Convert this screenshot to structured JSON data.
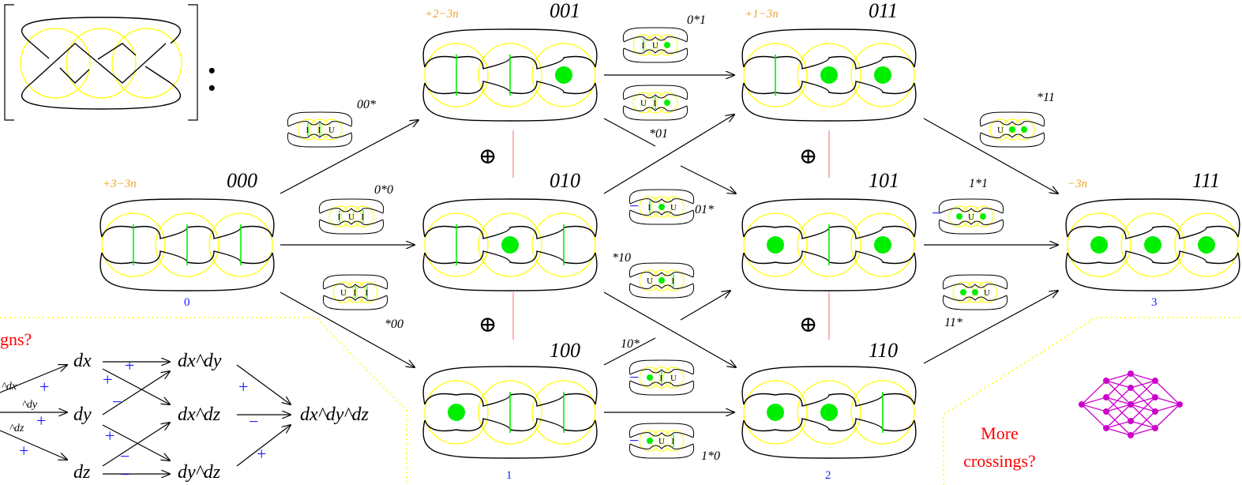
{
  "colors": {
    "curve": "#000000",
    "circle": "#ffff00",
    "smoothing": "#00ee00",
    "grade": "#f0a020",
    "height": "#1a1aff",
    "sign": "#1a1aff",
    "question": "#ff0000",
    "separator": "#ff8080",
    "cube": "#cc00cc",
    "dotted": "#ffff00"
  },
  "bracket": {
    "colon": ":"
  },
  "states": [
    {
      "label": "000",
      "grade": "+3−3n",
      "height": "0",
      "pattern": [
        0,
        0,
        0
      ]
    },
    {
      "label": "001",
      "grade": "+2−3n",
      "height": "",
      "pattern": [
        0,
        0,
        1
      ]
    },
    {
      "label": "010",
      "grade": "",
      "height": "",
      "pattern": [
        0,
        1,
        0
      ]
    },
    {
      "label": "100",
      "grade": "",
      "height": "1",
      "pattern": [
        1,
        0,
        0
      ]
    },
    {
      "label": "011",
      "grade": "+1−3n",
      "height": "",
      "pattern": [
        0,
        1,
        1
      ]
    },
    {
      "label": "101",
      "grade": "",
      "height": "",
      "pattern": [
        1,
        0,
        1
      ]
    },
    {
      "label": "110",
      "grade": "",
      "height": "2",
      "pattern": [
        1,
        1,
        0
      ]
    },
    {
      "label": "111",
      "grade": "−3n",
      "height": "3",
      "pattern": [
        1,
        1,
        1
      ]
    }
  ],
  "edges": [
    {
      "label": "00*",
      "sign": "",
      "marks": [
        "I",
        "I",
        "U"
      ]
    },
    {
      "label": "0*0",
      "sign": "",
      "marks": [
        "I",
        "U",
        "I"
      ]
    },
    {
      "label": "*00",
      "sign": "",
      "marks": [
        "U",
        "I",
        "I"
      ]
    },
    {
      "label": "0*1",
      "sign": "",
      "marks": [
        "I",
        "U",
        "G"
      ]
    },
    {
      "label": "*01",
      "sign": "",
      "marks": [
        "U",
        "I",
        "G"
      ]
    },
    {
      "label": "01*",
      "sign": "−",
      "marks": [
        "I",
        "G",
        "U"
      ]
    },
    {
      "label": "*10",
      "sign": "",
      "marks": [
        "U",
        "G",
        "I"
      ]
    },
    {
      "label": "10*",
      "sign": "−",
      "marks": [
        "G",
        "I",
        "U"
      ]
    },
    {
      "label": "1*0",
      "sign": "−",
      "marks": [
        "G",
        "U",
        "I"
      ]
    },
    {
      "label": "*11",
      "sign": "",
      "marks": [
        "U",
        "G",
        "G"
      ]
    },
    {
      "label": "1*1",
      "sign": "−",
      "marks": [
        "G",
        "U",
        "G"
      ]
    },
    {
      "label": "11*",
      "sign": "",
      "marks": [
        "G",
        "G",
        "U"
      ]
    }
  ],
  "oplus": "⊕",
  "algebra": {
    "question": "gns?",
    "left_labels": [
      "^dx",
      "^dy",
      "^dz"
    ],
    "col1": [
      "dx",
      "dy",
      "dz"
    ],
    "col2": [
      "dx^dy",
      "dx^dz",
      "dy^dz"
    ],
    "col3": "dx^dy^dz",
    "plus": "+",
    "minus": "−"
  },
  "more": {
    "line1": "More",
    "line2": "crossings?"
  }
}
